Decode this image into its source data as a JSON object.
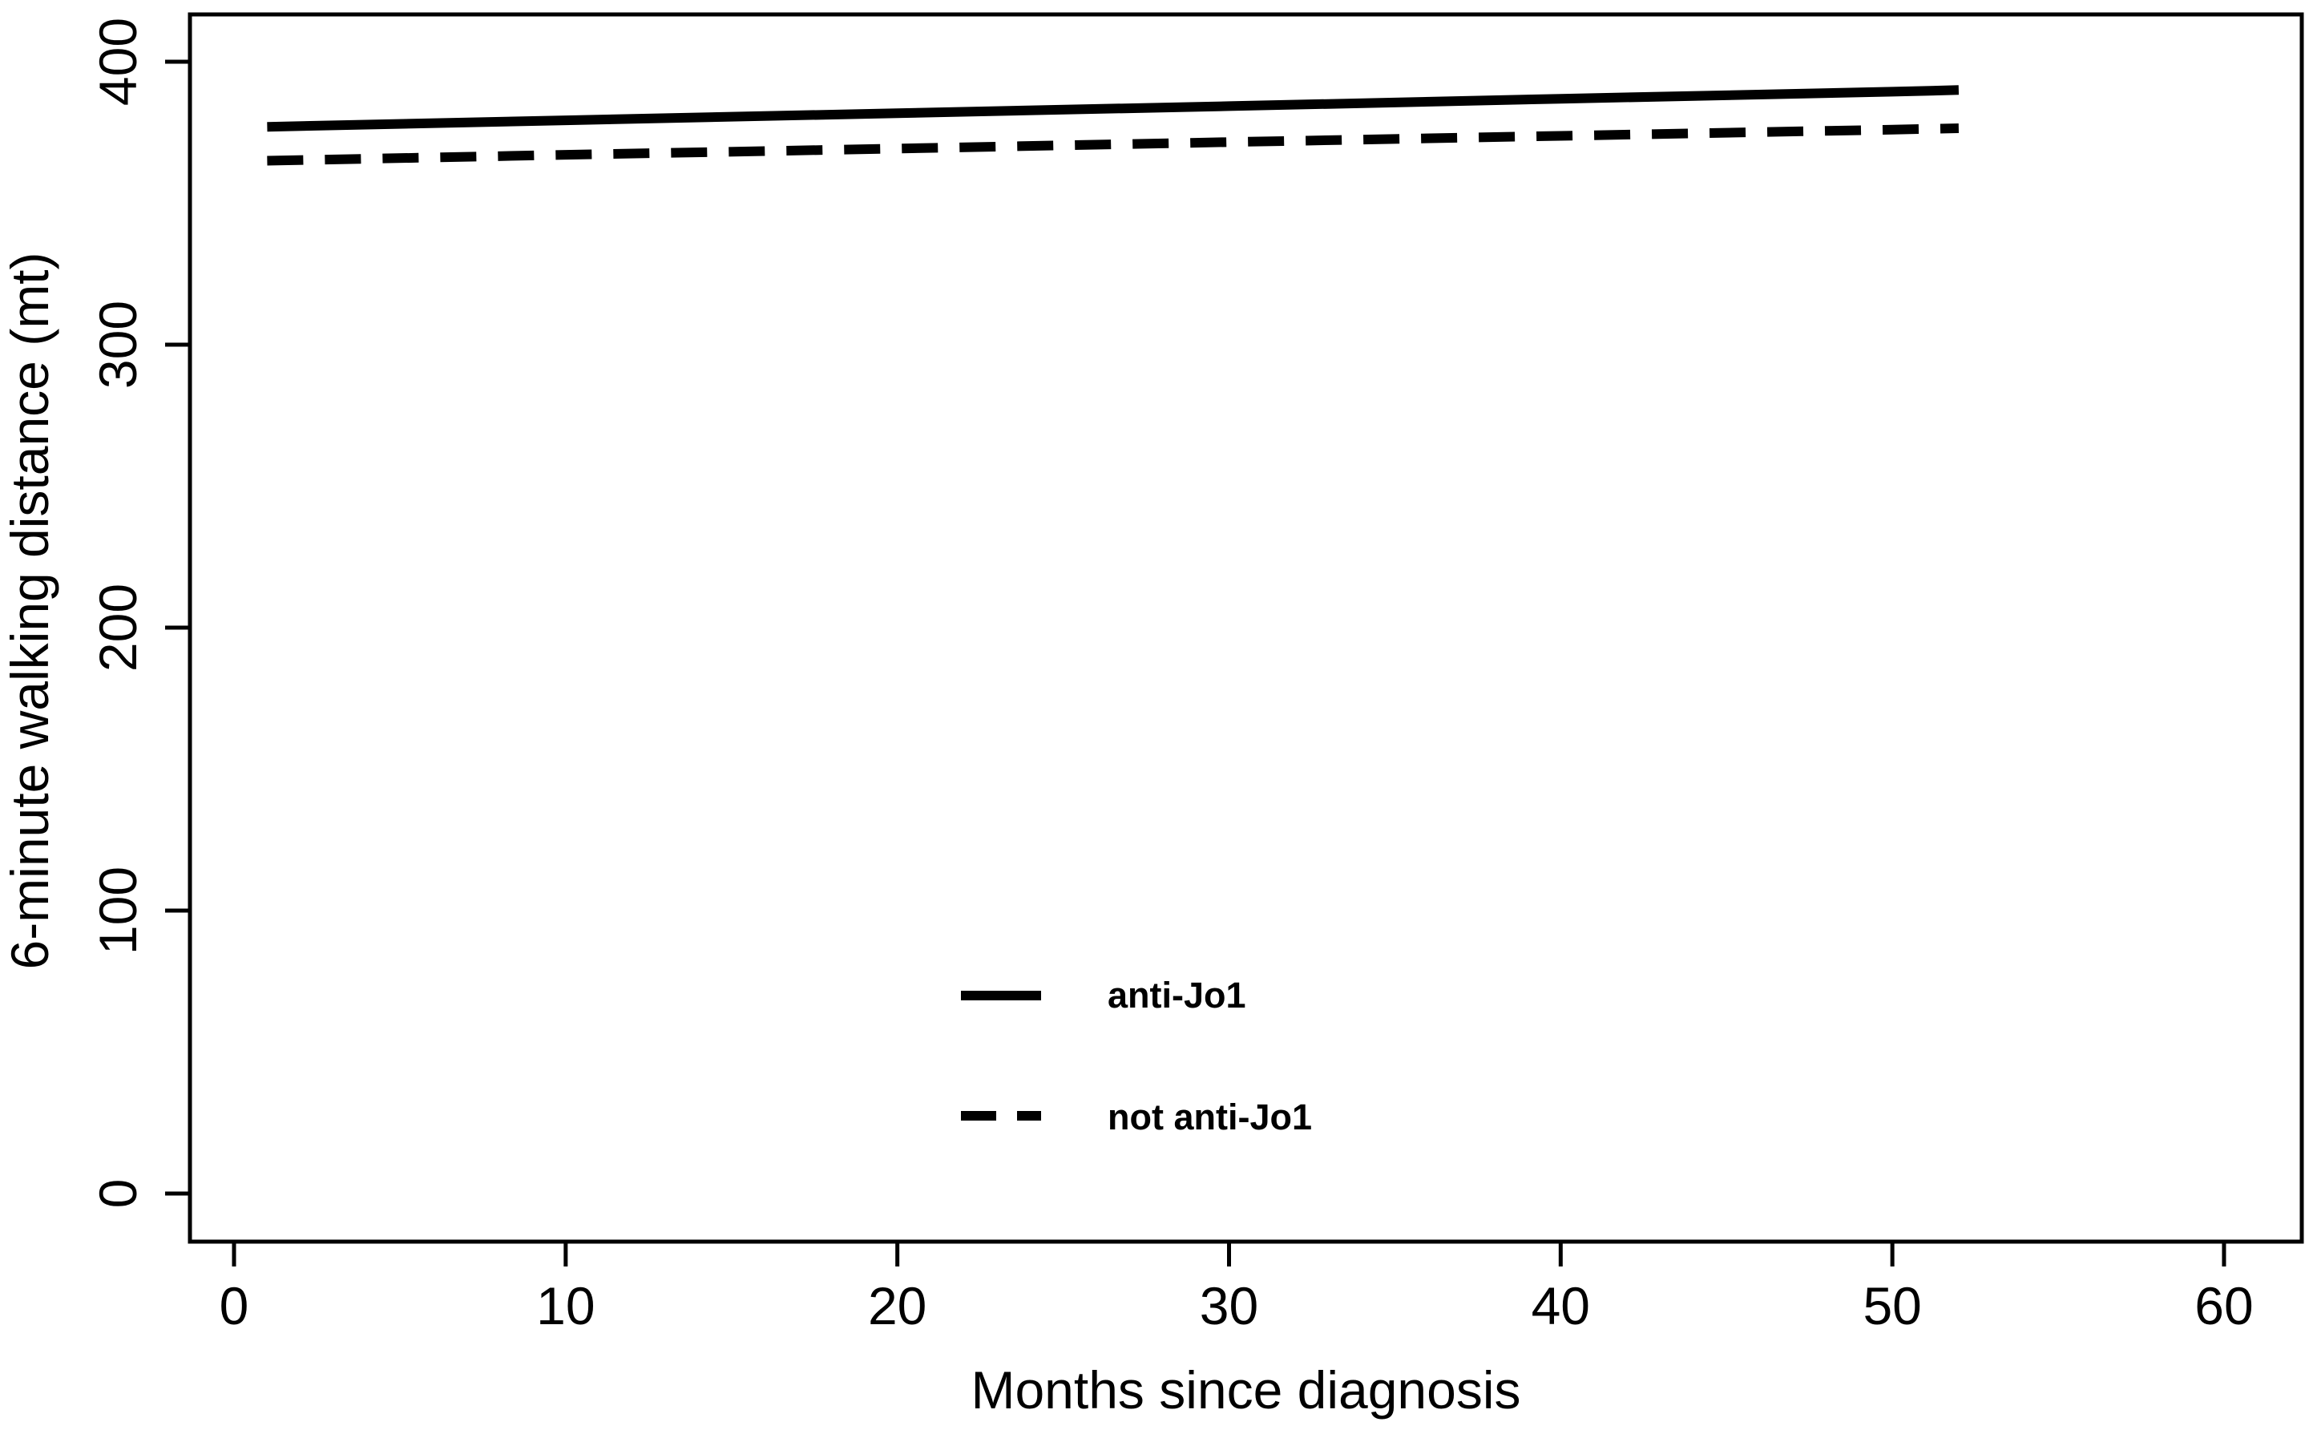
{
  "figure": {
    "background": "#ffffff",
    "foreground": "#000000"
  },
  "chart_data": {
    "type": "line",
    "title": "",
    "xlabel": "Months since diagnosis",
    "ylabel": "6-minute walking distance (mt)",
    "xticks": [
      0,
      10,
      20,
      30,
      40,
      50,
      60
    ],
    "yticks": [
      0,
      100,
      200,
      300,
      400
    ],
    "xlim": [
      -1.3,
      62.3
    ],
    "ylim": [
      -17,
      417
    ],
    "grid": false,
    "legend_position": "inside-bottom-center",
    "series": [
      {
        "name": "anti-Jo1",
        "line_style": "solid",
        "color": "#000000",
        "x": [
          1,
          10,
          20,
          30,
          40,
          50,
          52
        ],
        "y": [
          377,
          379.3,
          381.8,
          384.3,
          386.9,
          389.4,
          390
        ]
      },
      {
        "name": "not anti-Jo1",
        "line_style": "dashed",
        "color": "#000000",
        "x": [
          1,
          10,
          20,
          30,
          40,
          50,
          52
        ],
        "y": [
          365,
          367.1,
          369.3,
          371.6,
          373.8,
          376.0,
          376.5
        ]
      }
    ],
    "legend": {
      "entries": [
        {
          "label": "anti-Jo1",
          "line_style": "solid"
        },
        {
          "label": "not anti-Jo1",
          "line_style": "dashed"
        }
      ]
    }
  }
}
